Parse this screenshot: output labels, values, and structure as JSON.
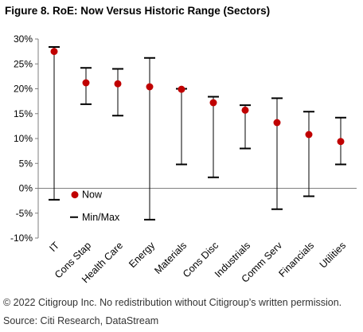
{
  "figure": {
    "title": "Figure 8. RoE: Now Versus Historic Range (Sectors)",
    "copyright": "© 2022 Citigroup Inc. No redistribution without Citigroup’s written permission.",
    "source": "Source: Citi Research, DataStream"
  },
  "chart_data": {
    "type": "scatter",
    "title": "Figure 8. RoE: Now Versus Historic Range (Sectors)",
    "xlabel": "",
    "ylabel": "",
    "categories": [
      "IT",
      "Cons Stap",
      "Health Care",
      "Energy",
      "Materials",
      "Cons Disc",
      "Industrials",
      "Comm Serv",
      "Financials",
      "Utilities"
    ],
    "now": [
      27.5,
      21.2,
      21.0,
      20.4,
      19.9,
      17.2,
      15.7,
      13.2,
      10.8,
      9.4
    ],
    "min": [
      -2.3,
      16.9,
      14.6,
      -6.3,
      4.8,
      2.2,
      8.0,
      -4.2,
      -1.6,
      4.8
    ],
    "max": [
      28.4,
      24.2,
      24.0,
      26.2,
      20.0,
      18.4,
      16.7,
      18.1,
      15.4,
      14.2
    ],
    "series": [
      {
        "name": "Now",
        "values": [
          27.5,
          21.2,
          21.0,
          20.4,
          19.9,
          17.2,
          15.7,
          13.2,
          10.8,
          9.4
        ]
      },
      {
        "name": "Min/Max",
        "min": [
          -2.3,
          16.9,
          14.6,
          -6.3,
          4.8,
          2.2,
          8.0,
          -4.2,
          -1.6,
          4.8
        ],
        "max": [
          28.4,
          24.2,
          24.0,
          26.2,
          20.0,
          18.4,
          16.7,
          18.1,
          15.4,
          14.2
        ]
      }
    ],
    "ylim": [
      -10,
      30
    ],
    "yticks": [
      30,
      25,
      20,
      15,
      10,
      5,
      0,
      -5,
      -10
    ],
    "ytick_labels": [
      "30%",
      "25%",
      "20%",
      "15%",
      "10%",
      "5%",
      "0%",
      "-5%",
      "-10%"
    ],
    "grid": false,
    "legend_position": "lower-left",
    "colors": {
      "now_marker": "#c00000",
      "range_line": "#000000",
      "axis": "#7f7f7f"
    }
  }
}
